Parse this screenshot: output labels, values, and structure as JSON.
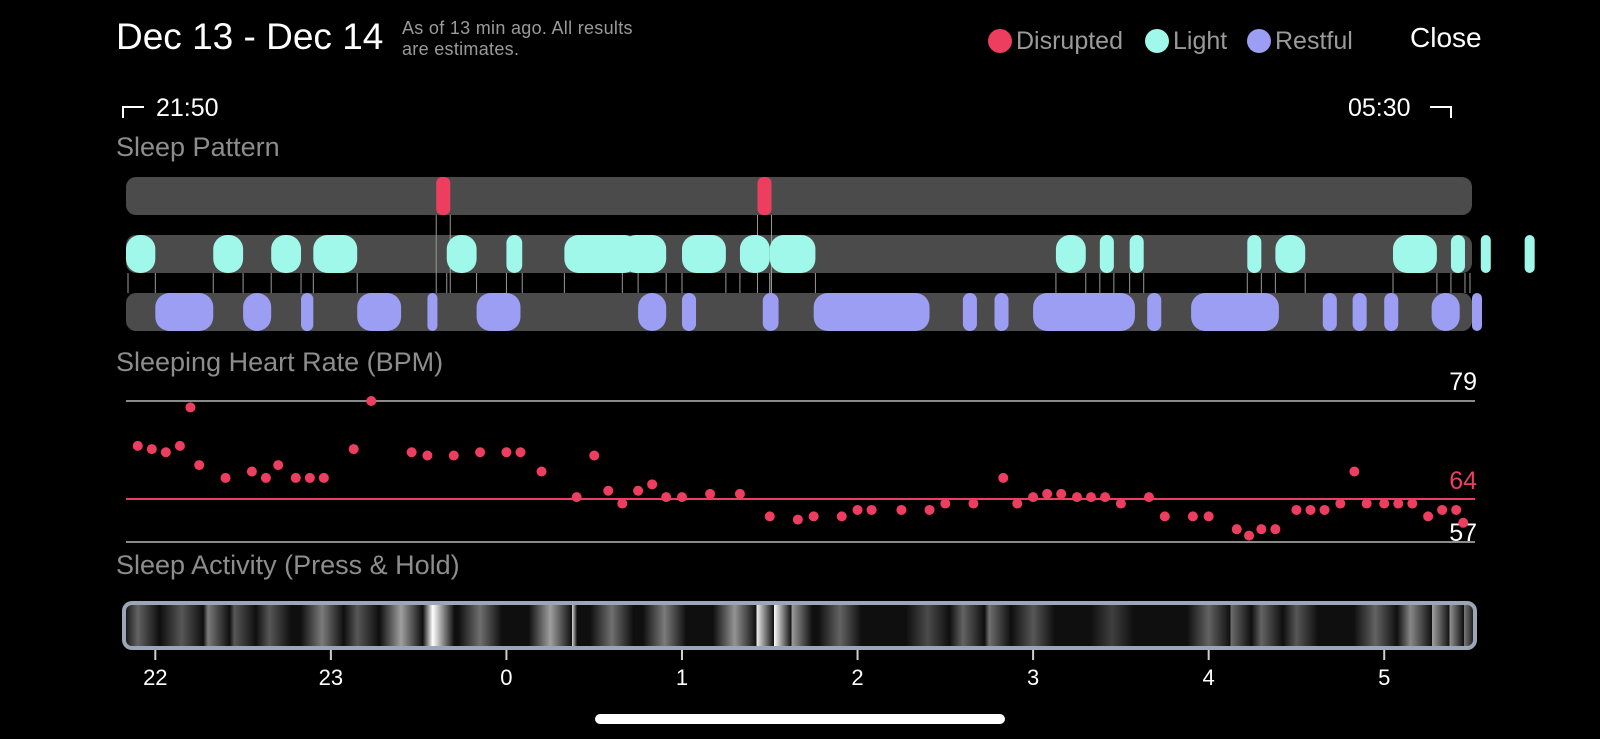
{
  "header": {
    "title": "Dec 13 - Dec 14",
    "as_of_line1": "As of 13 min ago. All results",
    "as_of_line2": "are estimates.",
    "close_label": "Close"
  },
  "legend": [
    {
      "label": "Disrupted",
      "color": "#ee3e60"
    },
    {
      "label": "Light",
      "color": "#9ff8ea"
    },
    {
      "label": "Restful",
      "color": "#9b9ef2"
    }
  ],
  "range": {
    "start": "21:50",
    "end": "05:30"
  },
  "sleep_pattern": {
    "title": "Sleep Pattern",
    "start_hour": 21.833,
    "end_hour": 29.5,
    "disrupted": [
      [
        23.6,
        23.68
      ],
      [
        25.43,
        25.51
      ]
    ],
    "light": [
      [
        21.83,
        22.0
      ],
      [
        22.33,
        22.5
      ],
      [
        22.66,
        22.83
      ],
      [
        22.9,
        23.15
      ],
      [
        23.66,
        23.83
      ],
      [
        24.0,
        24.09
      ],
      [
        24.33,
        24.75
      ],
      [
        24.66,
        24.91
      ],
      [
        25.0,
        25.25
      ],
      [
        25.33,
        25.5
      ],
      [
        25.5,
        25.76
      ],
      [
        27.13,
        27.3
      ],
      [
        27.38,
        27.46
      ],
      [
        27.55,
        27.63
      ],
      [
        28.22,
        28.3
      ],
      [
        28.38,
        28.55
      ],
      [
        29.05,
        29.3
      ],
      [
        29.38,
        29.46
      ],
      [
        29.55,
        29.72
      ],
      [
        29.8,
        30.05
      ]
    ],
    "restful": [
      [
        22.0,
        22.33
      ],
      [
        22.5,
        22.66
      ],
      [
        22.83,
        22.9
      ],
      [
        23.15,
        23.4
      ],
      [
        23.55,
        23.6
      ],
      [
        23.83,
        24.08
      ],
      [
        24.75,
        24.91
      ],
      [
        25.0,
        25.08
      ],
      [
        25.46,
        25.55
      ],
      [
        25.75,
        26.41
      ],
      [
        26.6,
        26.68
      ],
      [
        26.78,
        26.86
      ],
      [
        27.0,
        27.58
      ],
      [
        27.65,
        27.73
      ],
      [
        27.9,
        28.4
      ],
      [
        28.65,
        28.73
      ],
      [
        28.82,
        28.9
      ],
      [
        29.0,
        29.08
      ],
      [
        29.27,
        29.43
      ],
      [
        29.5,
        29.58
      ]
    ]
  },
  "heart_rate": {
    "title": "Sleeping Heart Rate (BPM)",
    "max_label": "79",
    "avg_label": "64",
    "min_label": "57",
    "max": 79,
    "avg": 64,
    "min": 57,
    "points": [
      [
        21.9,
        72
      ],
      [
        21.98,
        71.5
      ],
      [
        22.06,
        71
      ],
      [
        22.14,
        72
      ],
      [
        22.2,
        78
      ],
      [
        22.25,
        69
      ],
      [
        22.4,
        67
      ],
      [
        22.55,
        68
      ],
      [
        22.63,
        67
      ],
      [
        22.7,
        69
      ],
      [
        22.8,
        67
      ],
      [
        22.88,
        67
      ],
      [
        22.96,
        67
      ],
      [
        23.13,
        71.5
      ],
      [
        23.23,
        79
      ],
      [
        23.46,
        71
      ],
      [
        23.55,
        70.5
      ],
      [
        23.7,
        70.5
      ],
      [
        23.85,
        71
      ],
      [
        24.0,
        71
      ],
      [
        24.08,
        71
      ],
      [
        24.2,
        68
      ],
      [
        24.4,
        64
      ],
      [
        24.5,
        70.5
      ],
      [
        24.58,
        65
      ],
      [
        24.66,
        63
      ],
      [
        24.75,
        65
      ],
      [
        24.83,
        66
      ],
      [
        24.91,
        64
      ],
      [
        25.0,
        64
      ],
      [
        25.16,
        64.5
      ],
      [
        25.33,
        64.5
      ],
      [
        25.5,
        61
      ],
      [
        25.66,
        60.5
      ],
      [
        25.75,
        61
      ],
      [
        25.91,
        61
      ],
      [
        26.0,
        62
      ],
      [
        26.08,
        62
      ],
      [
        26.25,
        62
      ],
      [
        26.41,
        62
      ],
      [
        26.5,
        63
      ],
      [
        26.66,
        63
      ],
      [
        26.83,
        67
      ],
      [
        26.91,
        63
      ],
      [
        27.0,
        64
      ],
      [
        27.08,
        64.5
      ],
      [
        27.16,
        64.5
      ],
      [
        27.25,
        64
      ],
      [
        27.33,
        64
      ],
      [
        27.41,
        64
      ],
      [
        27.5,
        63
      ],
      [
        27.66,
        64
      ],
      [
        27.75,
        61
      ],
      [
        27.91,
        61
      ],
      [
        28.0,
        61
      ],
      [
        28.16,
        59
      ],
      [
        28.23,
        58
      ],
      [
        28.3,
        59
      ],
      [
        28.38,
        59
      ],
      [
        28.5,
        62
      ],
      [
        28.58,
        62
      ],
      [
        28.66,
        62
      ],
      [
        28.75,
        63
      ],
      [
        28.83,
        68
      ],
      [
        28.9,
        63
      ],
      [
        29.0,
        63
      ],
      [
        29.08,
        63
      ],
      [
        29.16,
        63
      ],
      [
        29.25,
        61
      ],
      [
        29.33,
        62
      ],
      [
        29.41,
        62
      ],
      [
        29.45,
        60
      ]
    ]
  },
  "activity": {
    "title": "Sleep Activity (Press & Hold)",
    "ticks": [
      "22",
      "23",
      "0",
      "1",
      "2",
      "3",
      "4",
      "5"
    ],
    "tick_hours": [
      22,
      23,
      24,
      25,
      26,
      27,
      28,
      29
    ],
    "bands": [
      [
        21.9,
        0.35
      ],
      [
        22.15,
        0.3
      ],
      [
        22.3,
        0.45
      ],
      [
        22.45,
        0.3
      ],
      [
        22.65,
        0.3
      ],
      [
        22.95,
        0.45
      ],
      [
        23.15,
        0.3
      ],
      [
        23.4,
        0.6
      ],
      [
        23.58,
        1.0
      ],
      [
        23.85,
        0.4
      ],
      [
        24.25,
        0.6
      ],
      [
        24.28,
        0.85
      ],
      [
        24.6,
        0.4
      ],
      [
        24.9,
        0.45
      ],
      [
        25.3,
        0.55
      ],
      [
        25.4,
        0.95
      ],
      [
        25.5,
        1.0
      ],
      [
        25.62,
        0.6
      ],
      [
        25.9,
        0.35
      ],
      [
        26.4,
        0.25
      ],
      [
        26.6,
        0.35
      ],
      [
        26.75,
        0.4
      ],
      [
        27.0,
        0.3
      ],
      [
        27.45,
        0.2
      ],
      [
        28.0,
        0.35
      ],
      [
        28.12,
        0.4
      ],
      [
        28.3,
        0.35
      ],
      [
        28.5,
        0.3
      ],
      [
        28.95,
        0.35
      ],
      [
        29.15,
        0.5
      ],
      [
        29.25,
        0.6
      ],
      [
        29.33,
        0.55
      ],
      [
        29.45,
        0.45
      ]
    ]
  }
}
